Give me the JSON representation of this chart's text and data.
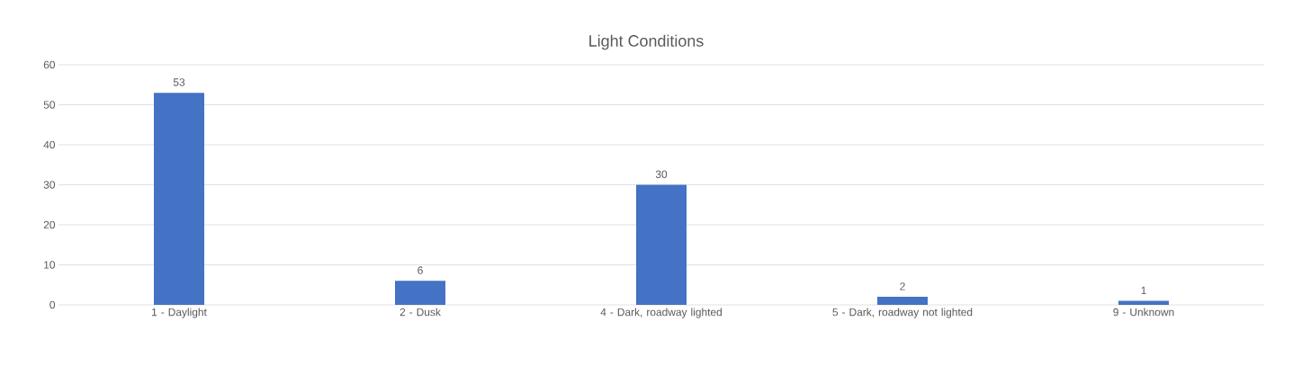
{
  "chart_data": {
    "type": "bar",
    "title": "Light Conditions",
    "categories": [
      "1 - Daylight",
      "2 - Dusk",
      "4 - Dark, roadway lighted",
      "5 - Dark, roadway not lighted",
      "9 - Unknown"
    ],
    "values": [
      53,
      6,
      30,
      2,
      1
    ],
    "color": "#4472c4",
    "ylim": [
      0,
      60
    ],
    "yticks": [
      0,
      10,
      20,
      30,
      40,
      50,
      60
    ],
    "grid": "y",
    "data_labels": true
  }
}
